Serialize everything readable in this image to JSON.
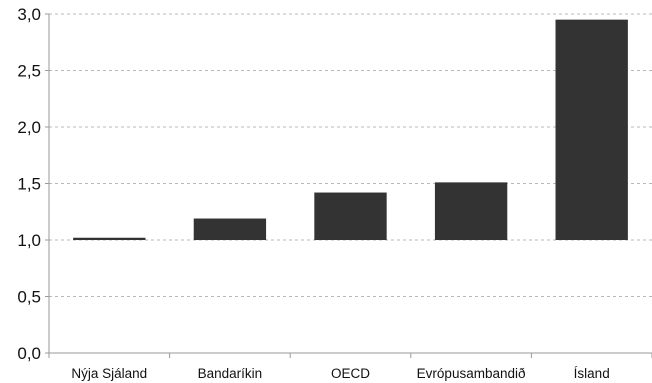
{
  "chart_data": {
    "type": "bar",
    "baseline": 1.0,
    "categories": [
      "Nýja Sjáland",
      "Bandaríkin",
      "OECD",
      "Evrópusambandið",
      "Ísland"
    ],
    "values": [
      1.02,
      1.19,
      1.42,
      1.51,
      2.95
    ],
    "y_ticks": [
      "0,0",
      "0,5",
      "1,0",
      "1,5",
      "2,0",
      "2,5",
      "3,0"
    ],
    "ylim": [
      0,
      3
    ],
    "grid": true,
    "legend": "none",
    "title": "",
    "xlabel": "",
    "ylabel": "",
    "colors": {
      "bar": "#333333",
      "grid": "#b8b8b8",
      "axis": "#9a9a9a"
    }
  }
}
